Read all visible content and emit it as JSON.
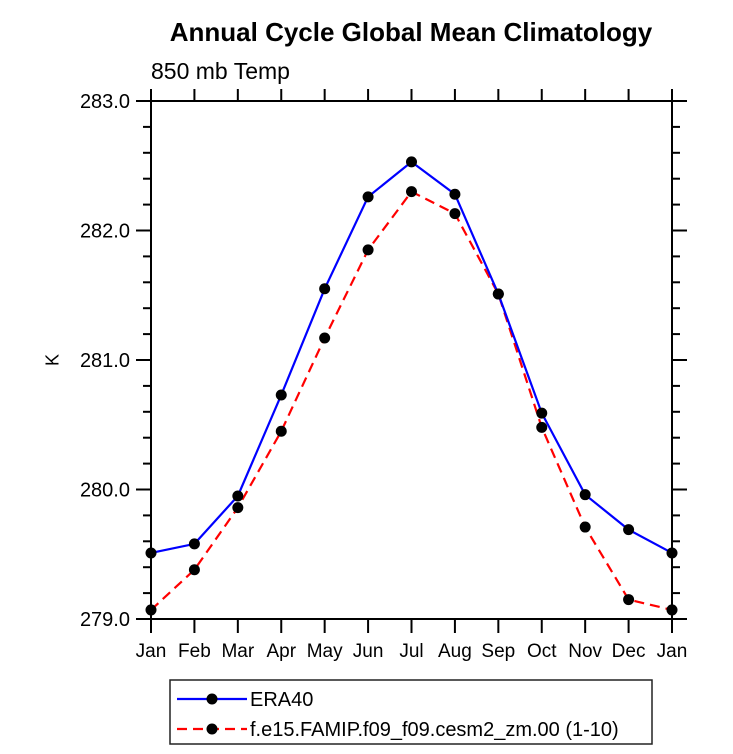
{
  "page": {
    "background": "#ffffff",
    "text_color": "#000000",
    "axis_color": "#000000"
  },
  "chart_data": {
    "type": "line",
    "title": "Annual Cycle Global Mean Climatology",
    "subtitle": "850 mb Temp",
    "ylabel": "K",
    "xlabel": "",
    "categories": [
      "Jan",
      "Feb",
      "Mar",
      "Apr",
      "May",
      "Jun",
      "Jul",
      "Aug",
      "Sep",
      "Oct",
      "Nov",
      "Dec",
      "Jan"
    ],
    "ylim": [
      279.0,
      283.0
    ],
    "y_major_step": 1.0,
    "y_minor_step": 0.2,
    "y_tick_labels": [
      "279.0",
      "280.0",
      "281.0",
      "282.0",
      "283.0"
    ],
    "grid": false,
    "legend_position": "bottom",
    "series": [
      {
        "name": "ERA40",
        "color": "#0000ff",
        "line_style": "solid",
        "marker": "filled-circle",
        "marker_color": "#000000",
        "values": [
          279.51,
          279.58,
          279.95,
          280.73,
          281.55,
          282.26,
          282.53,
          282.28,
          281.51,
          280.59,
          279.96,
          279.69,
          279.51
        ]
      },
      {
        "name": "f.e15.FAMIP.f09_f09.cesm2_zm.00 (1-10)",
        "color": "#ff0000",
        "line_style": "dashed",
        "marker": "filled-circle",
        "marker_color": "#000000",
        "values": [
          279.07,
          279.38,
          279.86,
          280.45,
          281.17,
          281.85,
          282.3,
          282.13,
          281.51,
          280.48,
          279.71,
          279.15,
          279.07
        ]
      }
    ]
  }
}
